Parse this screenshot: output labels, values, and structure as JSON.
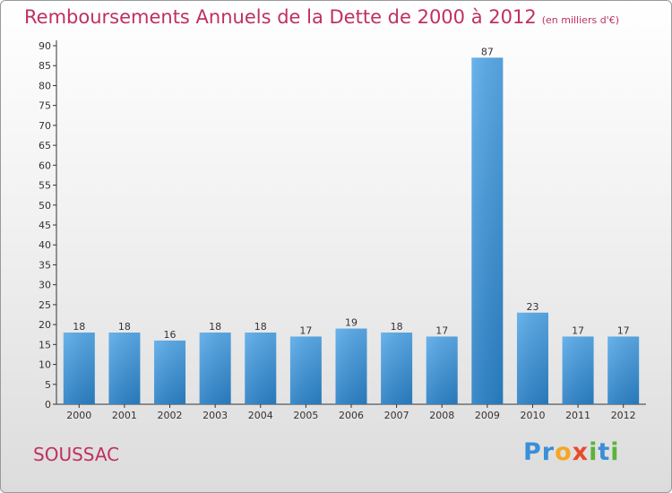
{
  "header": {
    "title": "Remboursements Annuels de la Dette de 2000 à 2012",
    "unit": "(en milliers d'€)"
  },
  "footer": {
    "commune": "SOUSSAC",
    "logo_text": "Proxiti"
  },
  "colors": {
    "title": "#c0305e",
    "bar_top": "#5aaae8",
    "bar_bottom": "#2a7fc4"
  },
  "chart_data": {
    "type": "bar",
    "title": "Remboursements Annuels de la Dette de 2000 à 2012",
    "subtitle": "(en milliers d'€)",
    "categories": [
      "2000",
      "2001",
      "2002",
      "2003",
      "2004",
      "2005",
      "2006",
      "2007",
      "2008",
      "2009",
      "2010",
      "2011",
      "2012"
    ],
    "values": [
      18,
      18,
      16,
      18,
      18,
      17,
      19,
      18,
      17,
      87,
      23,
      17,
      17
    ],
    "ylim": [
      0,
      90
    ],
    "yticks": [
      0,
      5,
      10,
      15,
      20,
      25,
      30,
      35,
      40,
      45,
      50,
      55,
      60,
      65,
      70,
      75,
      80,
      85,
      90
    ],
    "grid": false,
    "legend": "none"
  }
}
